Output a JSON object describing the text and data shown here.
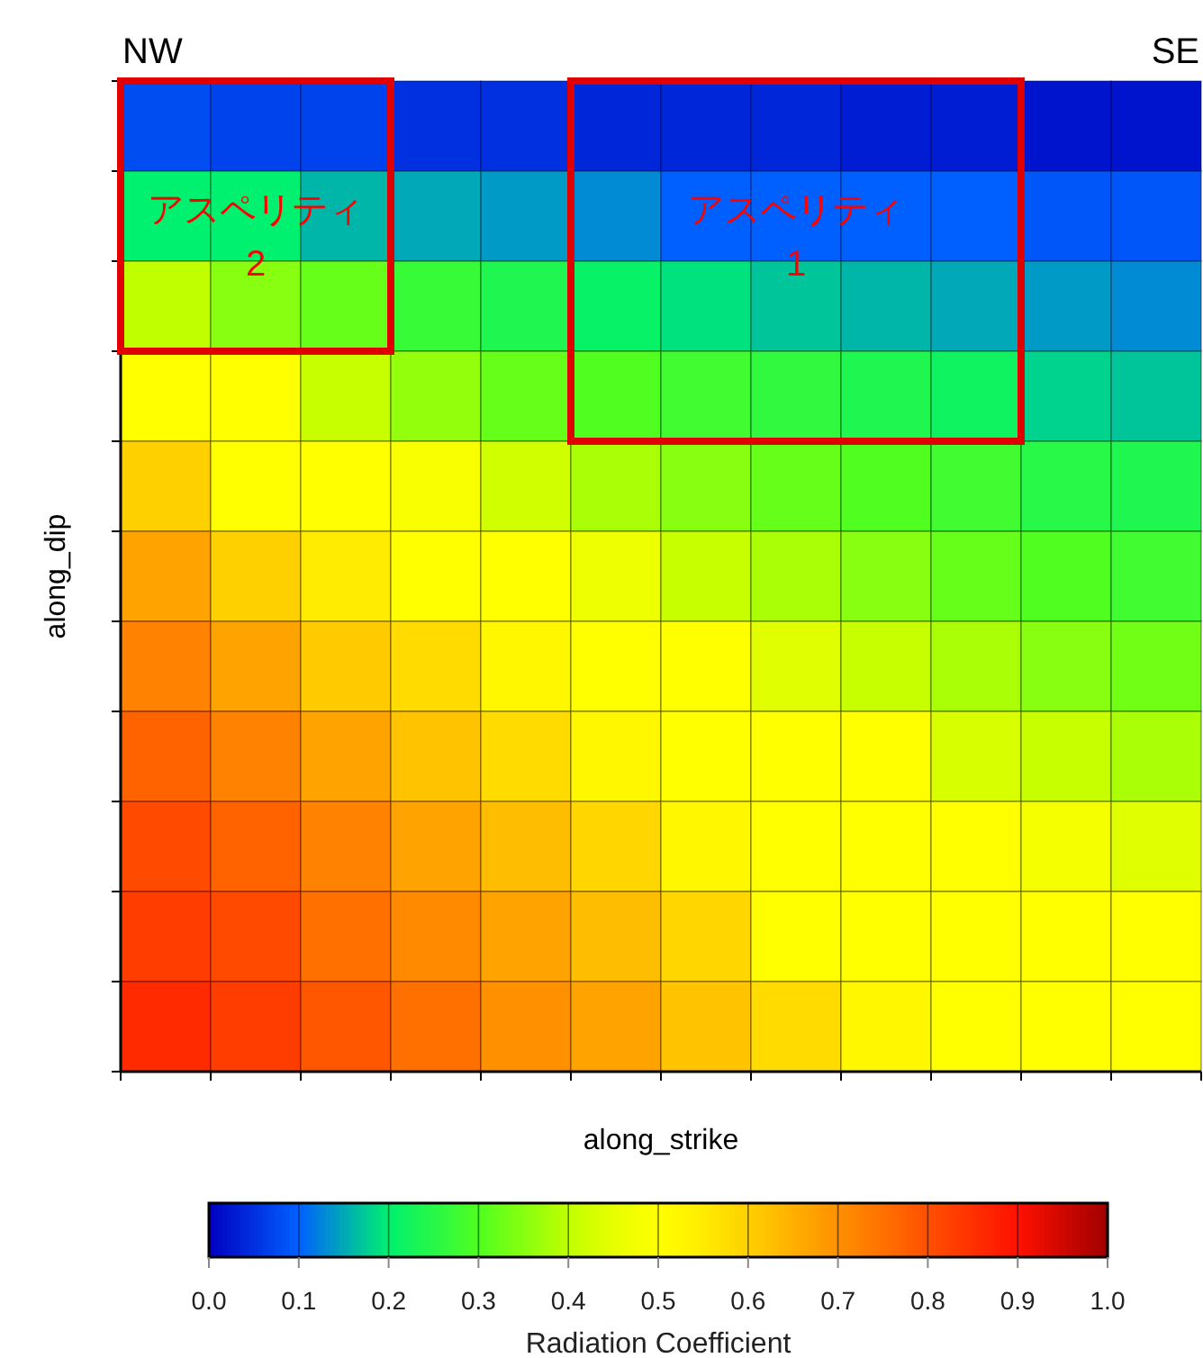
{
  "chart_data": {
    "type": "heatmap",
    "categories": [
      null,
      null,
      null,
      null,
      null,
      null,
      null,
      null,
      null,
      null,
      null,
      null
    ],
    "y_categories": [
      null,
      null,
      null,
      null,
      null,
      null,
      null,
      null,
      null,
      null,
      null
    ],
    "cells": [
      [
        0.08,
        0.07,
        0.07,
        0.05,
        0.05,
        0.04,
        0.04,
        0.04,
        0.03,
        0.03,
        0.02,
        0.02
      ],
      [
        0.2,
        0.2,
        0.16,
        0.15,
        0.14,
        0.13,
        0.1,
        0.1,
        0.1,
        0.1,
        0.09,
        0.09
      ],
      [
        0.4,
        0.35,
        0.32,
        0.27,
        0.24,
        0.21,
        0.19,
        0.17,
        0.16,
        0.15,
        0.14,
        0.13
      ],
      [
        0.5,
        0.5,
        0.41,
        0.36,
        0.32,
        0.3,
        0.28,
        0.26,
        0.24,
        0.22,
        0.18,
        0.17
      ],
      [
        0.6,
        0.5,
        0.5,
        0.49,
        0.42,
        0.38,
        0.35,
        0.32,
        0.3,
        0.28,
        0.25,
        0.24
      ],
      [
        0.67,
        0.6,
        0.55,
        0.5,
        0.5,
        0.46,
        0.41,
        0.38,
        0.35,
        0.32,
        0.3,
        0.28
      ],
      [
        0.72,
        0.67,
        0.61,
        0.58,
        0.52,
        0.5,
        0.5,
        0.44,
        0.41,
        0.38,
        0.35,
        0.33
      ],
      [
        0.77,
        0.72,
        0.67,
        0.62,
        0.58,
        0.52,
        0.5,
        0.5,
        0.5,
        0.43,
        0.41,
        0.38
      ],
      [
        0.81,
        0.77,
        0.72,
        0.67,
        0.63,
        0.59,
        0.52,
        0.5,
        0.5,
        0.5,
        0.48,
        0.44
      ],
      [
        0.83,
        0.81,
        0.75,
        0.71,
        0.67,
        0.63,
        0.59,
        0.5,
        0.5,
        0.5,
        0.5,
        0.5
      ],
      [
        0.86,
        0.83,
        0.79,
        0.75,
        0.7,
        0.67,
        0.62,
        0.58,
        0.52,
        0.5,
        0.5,
        0.5
      ]
    ],
    "clim": [
      0,
      1
    ],
    "cticks": [
      {
        "value": 0,
        "label": "0.0"
      },
      {
        "value": 0.1,
        "label": "0.1"
      },
      {
        "value": 0.2,
        "label": "0.2"
      },
      {
        "value": 0.3,
        "label": "0.3"
      },
      {
        "value": 0.4,
        "label": "0.4"
      },
      {
        "value": 0.5,
        "label": "0.5"
      },
      {
        "value": 0.6,
        "label": "0.6"
      },
      {
        "value": 0.7,
        "label": "0.7"
      },
      {
        "value": 0.8,
        "label": "0.8"
      },
      {
        "value": 0.9,
        "label": "0.9"
      },
      {
        "value": 1,
        "label": "1.0"
      }
    ],
    "xlabel": "along_strike",
    "ylabel": "along_dip",
    "clabel": "Radiation Coefficient",
    "annotations": [
      "NW",
      "SE",
      "アスペリティ\n2",
      "アスペリティ\n1"
    ]
  }
}
